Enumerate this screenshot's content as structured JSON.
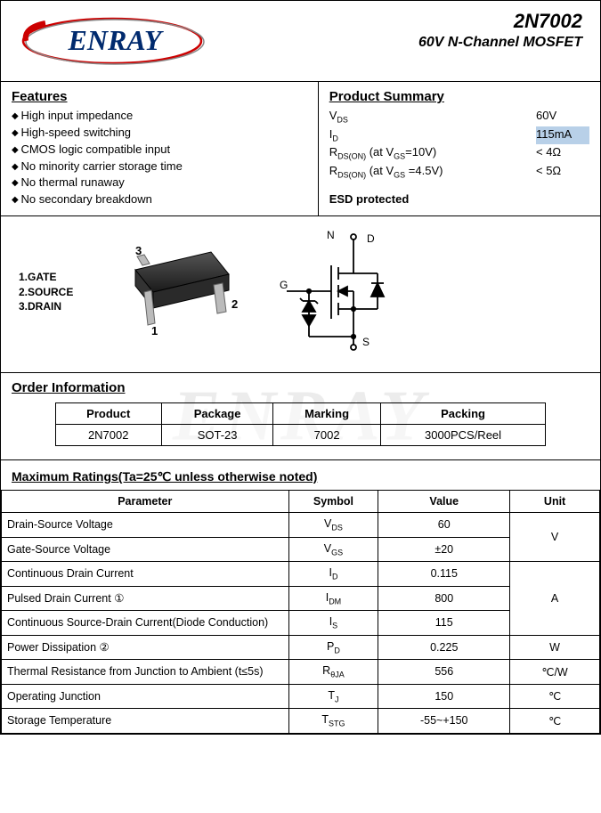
{
  "header": {
    "logo_text": "ENRAY",
    "part_number": "2N7002",
    "description": "60V N-Channel MOSFET"
  },
  "features": {
    "title": "Features",
    "items": [
      "High input impedance",
      "High-speed switching",
      "CMOS logic compatible input",
      "No minority carrier storage time",
      "No thermal runaway",
      "No secondary breakdown"
    ]
  },
  "summary": {
    "title": "Product Summary",
    "rows": [
      {
        "label": "V",
        "sub": "DS",
        "cond": "",
        "value": "60V"
      },
      {
        "label": "I",
        "sub": "D",
        "cond": "",
        "value": "115mA"
      },
      {
        "label": "R",
        "sub": "DS(ON)",
        "cond": " (at V",
        "sub2": "GS",
        "cond2": "=10V)",
        "value": "< 4Ω"
      },
      {
        "label": "R",
        "sub": "DS(ON)",
        "cond": " (at V",
        "sub2": "GS",
        "cond2": " =4.5V)",
        "value": "< 5Ω"
      }
    ],
    "esd": "ESD protected"
  },
  "pins": {
    "labels": [
      "1.GATE",
      "2.SOURCE",
      "3.DRAIN"
    ],
    "nums": [
      "1",
      "2",
      "3"
    ],
    "schematic_labels": {
      "n": "N",
      "d": "D",
      "g": "G",
      "s": "S"
    }
  },
  "order": {
    "title": "Order Information",
    "headers": [
      "Product",
      "Package",
      "Marking",
      "Packing"
    ],
    "row": [
      "2N7002",
      "SOT-23",
      "7002",
      "3000PCS/Reel"
    ]
  },
  "watermark": "ENRAY",
  "ratings": {
    "title": "Maximum Ratings(Ta=25℃ unless otherwise noted)",
    "headers": [
      "Parameter",
      "Symbol",
      "Value",
      "Unit"
    ],
    "rows": [
      {
        "param": "Drain-Source Voltage",
        "sym_pre": "V",
        "sym_sub": "DS",
        "val": "60",
        "unit": "V",
        "unit_rowspan": 2
      },
      {
        "param": "Gate-Source Voltage",
        "sym_pre": "V",
        "sym_sub": "GS",
        "val": "±20"
      },
      {
        "param": "Continuous Drain Current",
        "sym_pre": "I",
        "sym_sub": "D",
        "val": "0.115",
        "unit": "A",
        "unit_rowspan": 3
      },
      {
        "param": "Pulsed Drain Current ①",
        "sym_pre": "I",
        "sym_sub": "DM",
        "val": "800"
      },
      {
        "param": "Continuous Source-Drain Current(Diode Conduction)",
        "sym_pre": "I",
        "sym_sub": "S",
        "val": "115"
      },
      {
        "param": "Power Dissipation ②",
        "sym_pre": "P",
        "sym_sub": "D",
        "val": "0.225",
        "unit": "W",
        "unit_rowspan": 1
      },
      {
        "param": "Thermal Resistance from Junction to Ambient (t≤5s)",
        "sym_pre": "R",
        "sym_sub": "θJA",
        "val": "556",
        "unit": "℃/W",
        "unit_rowspan": 1
      },
      {
        "param": "Operating Junction",
        "sym_pre": "T",
        "sym_sub": "J",
        "val": "150",
        "unit": "℃",
        "unit_rowspan": 1
      },
      {
        "param": "Storage Temperature",
        "sym_pre": "T",
        "sym_sub": "STG",
        "val": "-55~+150",
        "unit": "℃",
        "unit_rowspan": 1
      }
    ]
  }
}
